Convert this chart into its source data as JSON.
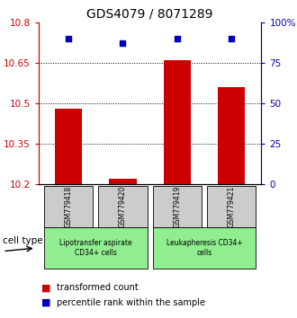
{
  "title": "GDS4079 / 8071289",
  "samples": [
    "GSM779418",
    "GSM779420",
    "GSM779419",
    "GSM779421"
  ],
  "red_values": [
    10.48,
    10.22,
    10.66,
    10.56
  ],
  "blue_values": [
    90,
    87,
    90,
    90
  ],
  "ylim_left": [
    10.2,
    10.8
  ],
  "ylim_right": [
    0,
    100
  ],
  "yticks_left": [
    10.2,
    10.35,
    10.5,
    10.65,
    10.8
  ],
  "yticks_right": [
    0,
    25,
    50,
    75,
    100
  ],
  "ytick_labels_right": [
    "0",
    "25",
    "50",
    "75",
    "100%"
  ],
  "groups": [
    {
      "start": 0,
      "end": 1,
      "label": "Lipotransfer aspirate\nCD34+ cells",
      "color": "#90EE90"
    },
    {
      "start": 2,
      "end": 3,
      "label": "Leukapheresis CD34+\ncells",
      "color": "#90EE90"
    }
  ],
  "red_color": "#CC0000",
  "blue_color": "#0000BB",
  "gray_color": "#CCCCCC",
  "bar_width": 0.5,
  "title_fontsize": 10,
  "tick_fontsize": 7.5,
  "legend_fontsize": 7,
  "cell_type_label": "cell type",
  "legend_red": "transformed count",
  "legend_blue": "percentile rank within the sample"
}
